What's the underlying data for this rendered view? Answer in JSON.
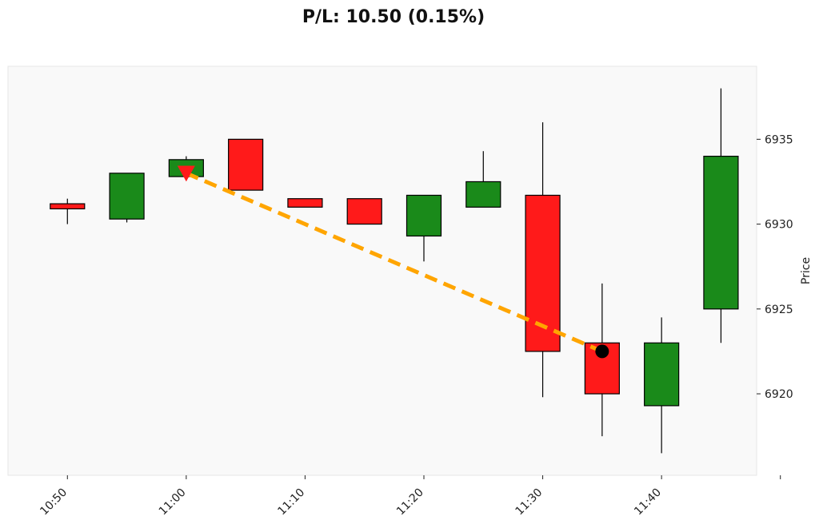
{
  "chart_data": {
    "type": "candlestick",
    "title": "P/L: 10.50 (0.15%)",
    "xlabel": "",
    "ylabel": "Price",
    "y_axis_side": "right",
    "ylim": [
      6915.2,
      6939.3
    ],
    "yticks": [
      6920,
      6925,
      6930,
      6935
    ],
    "xticks": [
      {
        "t": "10:50",
        "label": "10:50"
      },
      {
        "t": "11:00",
        "label": "11:00"
      },
      {
        "t": "11:10",
        "label": "11:10"
      },
      {
        "t": "11:20",
        "label": "11:20"
      },
      {
        "t": "11:30",
        "label": "11:30"
      },
      {
        "t": "11:40",
        "label": "11:40"
      },
      {
        "t": "11:50",
        "label": ""
      }
    ],
    "xlim": [
      "10:45",
      "11:48"
    ],
    "candles": [
      {
        "t": "10:50",
        "open": 6931.2,
        "high": 6931.5,
        "low": 6930.0,
        "close": 6930.9
      },
      {
        "t": "10:55",
        "open": 6930.3,
        "high": 6933.0,
        "low": 6930.1,
        "close": 6933.0
      },
      {
        "t": "11:00",
        "open": 6932.8,
        "high": 6934.0,
        "low": 6932.6,
        "close": 6933.8
      },
      {
        "t": "11:05",
        "open": 6935.0,
        "high": 6935.0,
        "low": 6932.0,
        "close": 6932.0
      },
      {
        "t": "11:10",
        "open": 6931.5,
        "high": 6931.5,
        "low": 6931.0,
        "close": 6931.0
      },
      {
        "t": "11:15",
        "open": 6931.5,
        "high": 6931.5,
        "low": 6930.0,
        "close": 6930.0
      },
      {
        "t": "11:20",
        "open": 6929.3,
        "high": 6931.7,
        "low": 6927.8,
        "close": 6931.7
      },
      {
        "t": "11:25",
        "open": 6931.0,
        "high": 6934.3,
        "low": 6931.0,
        "close": 6932.5
      },
      {
        "t": "11:30",
        "open": 6931.7,
        "high": 6936.0,
        "low": 6919.8,
        "close": 6922.5
      },
      {
        "t": "11:35",
        "open": 6923.0,
        "high": 6926.5,
        "low": 6917.5,
        "close": 6920.0
      },
      {
        "t": "11:40",
        "open": 6919.3,
        "high": 6924.5,
        "low": 6916.5,
        "close": 6923.0
      },
      {
        "t": "11:45",
        "open": 6925.0,
        "high": 6938.0,
        "low": 6923.0,
        "close": 6934.0
      }
    ],
    "trade": {
      "entry": {
        "t": "11:00",
        "price": 6933.0,
        "marker": "triangle-down"
      },
      "exit": {
        "t": "11:35",
        "price": 6922.5,
        "marker": "circle"
      }
    },
    "colors": {
      "up": "#1a8a1a",
      "down": "#ff1a1a",
      "trade_line": "#ffa500",
      "entry_marker": "#ff1a1a",
      "exit_marker": "#000000",
      "plot_bg": "#f9f9f9"
    },
    "grid": false,
    "legend": "none"
  }
}
